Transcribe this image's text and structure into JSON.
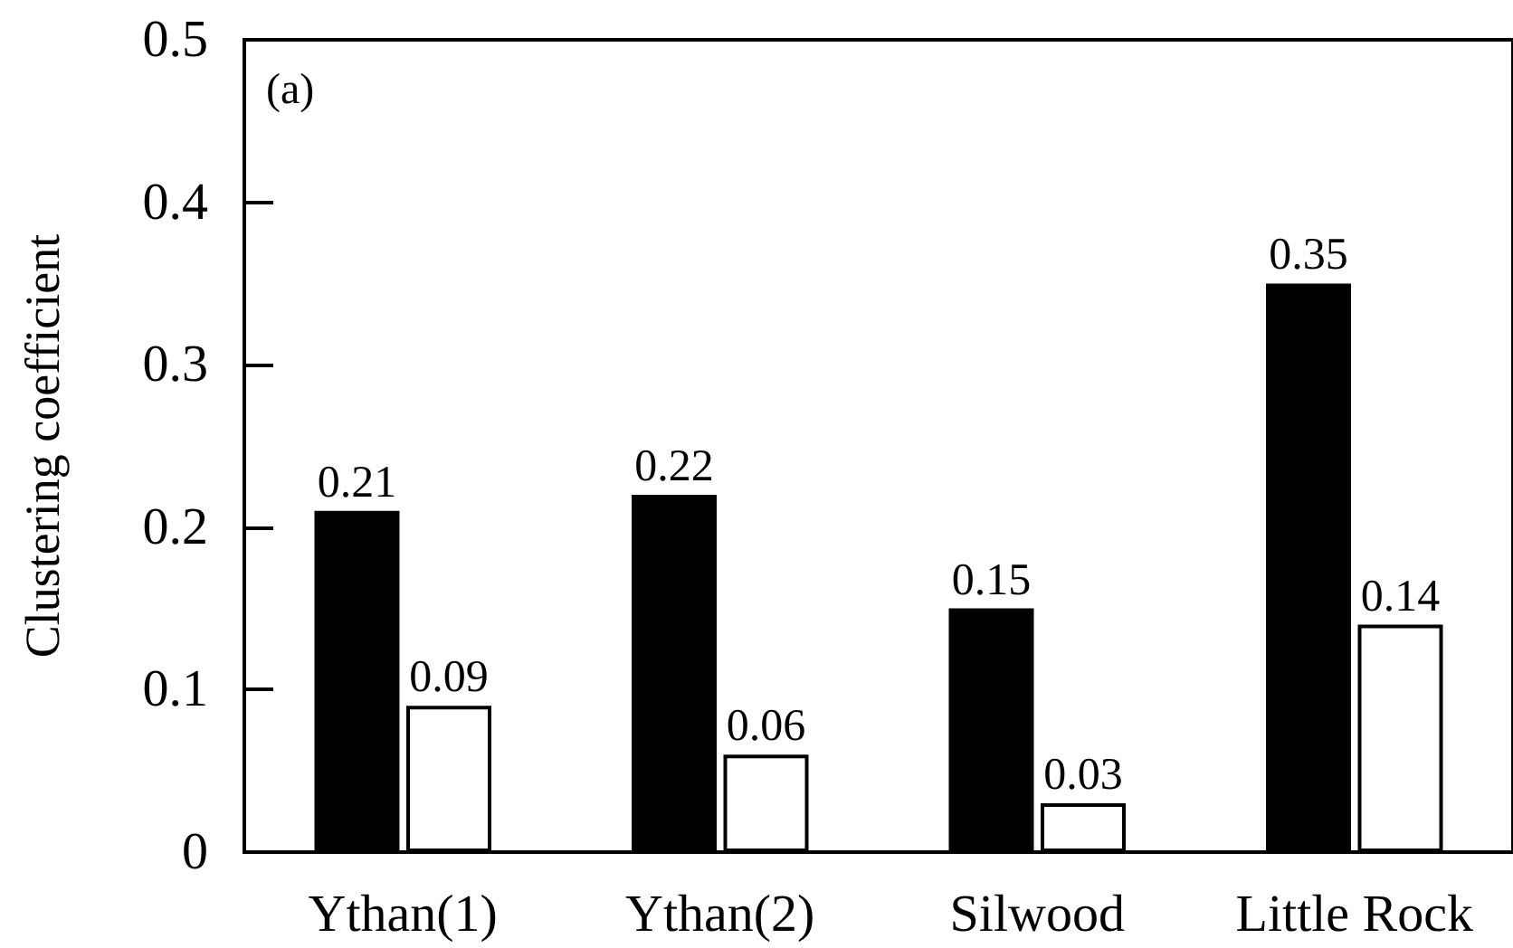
{
  "chart_data": {
    "type": "bar",
    "ylabel": "Clustering coefficient",
    "annotations": [
      "(a)"
    ],
    "categories": [
      "Ythan(1)",
      "Ythan(2)",
      "Silwood",
      "Little Rock"
    ],
    "series": [
      {
        "color": "#000000",
        "values": [
          0.21,
          0.22,
          0.15,
          0.35
        ]
      },
      {
        "color": "#ffffff",
        "values": [
          0.09,
          0.06,
          0.03,
          0.14
        ]
      }
    ],
    "ylim": [
      0,
      0.5
    ],
    "yticks": [
      0,
      0.1,
      0.2,
      0.3,
      0.4,
      0.5
    ],
    "data_labels": true,
    "grid": false
  }
}
